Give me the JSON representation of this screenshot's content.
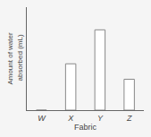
{
  "chart_data": {
    "type": "bar",
    "categories": [
      "W",
      "X",
      "Y",
      "Z"
    ],
    "values": [
      0,
      45,
      78,
      30
    ],
    "color": "#ffffff",
    "xlabel": "Fabric",
    "ylabel": "Amount of water\n absorbed (mL)",
    "ylim": [
      0,
      100
    ],
    "grid": false,
    "tick_labels": "x"
  }
}
